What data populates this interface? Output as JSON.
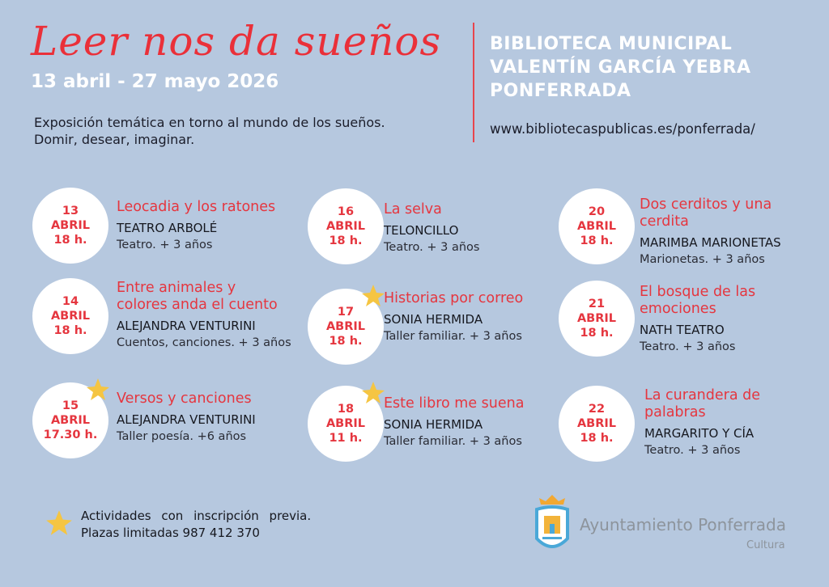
{
  "header": {
    "title": "Leer nos da sueños",
    "dates": "13 abril - 27 mayo 2026",
    "intro": "Exposición temática en torno al mundo de los sueños. Domir, desear, imaginar.",
    "library_lines": [
      "BIBLIOTECA MUNICIPAL",
      "VALENTÍN GARCÍA YEBRA",
      "PONFERRADA"
    ],
    "url": "www.bibliotecaspublicas.es/ponferrada/"
  },
  "colors": {
    "background": "#b6c8df",
    "accent": "#e5363f",
    "star": "#f5c542"
  },
  "events": [
    {
      "day": "13",
      "month": "ABRIL",
      "time": "18 h.",
      "title": "Leocadia y los ratones",
      "company": "TEATRO ARBOLÉ",
      "desc": "Teatro. + 3 años",
      "star": false
    },
    {
      "day": "14",
      "month": "ABRIL",
      "time": "18 h.",
      "title": "Entre animales y colores anda el cuento",
      "company": "ALEJANDRA VENTURINI",
      "desc": "Cuentos, canciones. + 3 años",
      "star": false
    },
    {
      "day": "15",
      "month": "ABRIL",
      "time": "17.30 h.",
      "title": "Versos y canciones",
      "company": "ALEJANDRA VENTURINI",
      "desc": "Taller poesía. +6 años",
      "star": true
    },
    {
      "day": "16",
      "month": "ABRIL",
      "time": "18 h.",
      "title": "La selva",
      "company": "TELONCILLO",
      "desc": "Teatro. + 3 años",
      "star": false
    },
    {
      "day": "17",
      "month": "ABRIL",
      "time": "18 h.",
      "title": "Historias por correo",
      "company": "SONIA HERMIDA",
      "desc": "Taller familiar. + 3 años",
      "star": true
    },
    {
      "day": "18",
      "month": "ABRIL",
      "time": "11 h.",
      "title": "Este libro me suena",
      "company": "SONIA HERMIDA",
      "desc": "Taller familiar. + 3 años",
      "star": true
    },
    {
      "day": "20",
      "month": "ABRIL",
      "time": "18 h.",
      "title": "Dos cerditos y una cerdita",
      "company": "MARIMBA MARIONETAS",
      "desc": "Marionetas. + 3 años",
      "star": false
    },
    {
      "day": "21",
      "month": "ABRIL",
      "time": "18 h.",
      "title": "El bosque de las emociones",
      "company": "NATH TEATRO",
      "desc": "Teatro. + 3 años",
      "star": false
    },
    {
      "day": "22",
      "month": "ABRIL",
      "time": "18 h.",
      "title": "La curandera de palabras",
      "company": "MARGARITO Y CÍA",
      "desc": "Teatro. + 3 años",
      "star": false
    }
  ],
  "footer": {
    "note_line1": "Actividades con inscripción previa.",
    "note_line2": "Plazas limitadas 987 412 370",
    "logo_text": "Ayuntamiento Ponferrada",
    "logo_sub": "Cultura"
  }
}
